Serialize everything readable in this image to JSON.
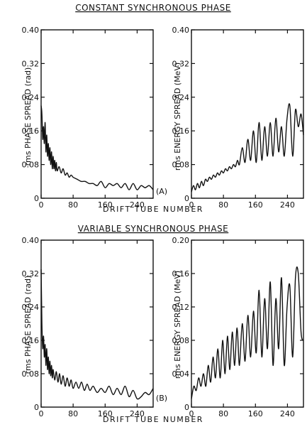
{
  "chart_data": [
    {
      "type": "line",
      "panel": "top-left",
      "title": "CONSTANT SYNCHRONOUS PHASE",
      "ylabel": "rms PHASE SPREAD (rad)",
      "xlabel": "DRIFT TUBE NUMBER",
      "xlim": [
        0,
        280
      ],
      "ylim": [
        0,
        0.4
      ],
      "xticks": [
        0,
        80,
        160,
        240
      ],
      "xtick_labels": [
        "0",
        "80",
        "160",
        "240"
      ],
      "yticks": [
        0,
        0.08,
        0.16,
        0.24,
        0.32,
        0.4
      ],
      "ytick_labels": [
        "0",
        "0.08",
        "0.16",
        "0.24",
        "0.32",
        "0.40"
      ],
      "series": [
        {
          "x": [
            0,
            2,
            4,
            6,
            8,
            10,
            12,
            14,
            16,
            18,
            20,
            22,
            24,
            26,
            28,
            30,
            32,
            34,
            36,
            38,
            40,
            45,
            50,
            55,
            60,
            65,
            70,
            75,
            80,
            90,
            100,
            110,
            120,
            130,
            140,
            150,
            160,
            170,
            180,
            190,
            200,
            210,
            220,
            230,
            240,
            250,
            260,
            270,
            280
          ],
          "y": [
            0.22,
            0.2,
            0.14,
            0.17,
            0.13,
            0.18,
            0.11,
            0.15,
            0.1,
            0.13,
            0.09,
            0.12,
            0.08,
            0.11,
            0.07,
            0.1,
            0.07,
            0.09,
            0.065,
            0.085,
            0.065,
            0.075,
            0.06,
            0.07,
            0.055,
            0.06,
            0.05,
            0.055,
            0.05,
            0.045,
            0.04,
            0.04,
            0.035,
            0.035,
            0.03,
            0.04,
            0.025,
            0.035,
            0.03,
            0.035,
            0.025,
            0.035,
            0.02,
            0.035,
            0.02,
            0.03,
            0.025,
            0.03,
            0.02
          ]
        }
      ]
    },
    {
      "type": "line",
      "panel": "top-right",
      "ylabel": "rms ENERGY SPREAD (MeV)",
      "annotation": "(A)",
      "xlim": [
        0,
        280
      ],
      "ylim": [
        0,
        0.4
      ],
      "xticks": [
        0,
        80,
        160,
        240
      ],
      "xtick_labels": [
        "0",
        "80",
        "160",
        "240"
      ],
      "yticks": [
        0,
        0.08,
        0.16,
        0.24,
        0.32,
        0.4
      ],
      "ytick_labels": [
        "0",
        "0.08",
        "0.16",
        "0.24",
        "0.32",
        "0.40"
      ],
      "series": [
        {
          "x": [
            0,
            5,
            10,
            15,
            20,
            25,
            30,
            35,
            40,
            45,
            50,
            55,
            60,
            65,
            70,
            75,
            80,
            85,
            90,
            95,
            100,
            105,
            110,
            115,
            120,
            127,
            134,
            141,
            148,
            155,
            162,
            169,
            176,
            183,
            190,
            197,
            204,
            211,
            218,
            225,
            232,
            239,
            246,
            253,
            260,
            267,
            274,
            280
          ],
          "y": [
            0.015,
            0.03,
            0.02,
            0.035,
            0.025,
            0.04,
            0.03,
            0.045,
            0.04,
            0.05,
            0.045,
            0.055,
            0.05,
            0.06,
            0.055,
            0.065,
            0.06,
            0.07,
            0.065,
            0.075,
            0.07,
            0.08,
            0.075,
            0.09,
            0.08,
            0.12,
            0.085,
            0.14,
            0.09,
            0.16,
            0.085,
            0.18,
            0.09,
            0.17,
            0.1,
            0.18,
            0.1,
            0.19,
            0.11,
            0.17,
            0.1,
            0.19,
            0.22,
            0.1,
            0.21,
            0.17,
            0.2,
            0.15
          ]
        }
      ]
    },
    {
      "type": "line",
      "panel": "bottom-left",
      "title": "VARIABLE SYNCHRONOUS PHASE",
      "ylabel": "rms PHASE SPREAD (rad)",
      "xlabel": "DRIFT TUBE NUMBER",
      "xlim": [
        0,
        280
      ],
      "ylim": [
        0,
        0.4
      ],
      "xticks": [
        0,
        80,
        160,
        240
      ],
      "xtick_labels": [
        "0",
        "80",
        "160",
        "240"
      ],
      "yticks": [
        0,
        0.08,
        0.16,
        0.24,
        0.32,
        0.4
      ],
      "ytick_labels": [
        "0",
        "0.08",
        "0.16",
        "0.24",
        "0.32",
        "0.40"
      ],
      "series": [
        {
          "x": [
            0,
            2,
            4,
            6,
            8,
            10,
            12,
            14,
            16,
            18,
            20,
            22,
            24,
            26,
            28,
            30,
            34,
            38,
            42,
            46,
            50,
            55,
            60,
            65,
            70,
            75,
            80,
            87,
            94,
            101,
            108,
            115,
            122,
            130,
            140,
            150,
            160,
            170,
            180,
            190,
            200,
            210,
            220,
            230,
            240,
            250,
            260,
            270,
            280
          ],
          "y": [
            0.33,
            0.2,
            0.14,
            0.17,
            0.12,
            0.15,
            0.1,
            0.14,
            0.09,
            0.12,
            0.08,
            0.11,
            0.075,
            0.1,
            0.07,
            0.09,
            0.065,
            0.085,
            0.06,
            0.08,
            0.055,
            0.075,
            0.05,
            0.07,
            0.05,
            0.065,
            0.045,
            0.06,
            0.045,
            0.06,
            0.04,
            0.055,
            0.04,
            0.05,
            0.035,
            0.045,
            0.035,
            0.05,
            0.03,
            0.045,
            0.03,
            0.05,
            0.025,
            0.04,
            0.02,
            0.025,
            0.035,
            0.03,
            0.045
          ]
        }
      ]
    },
    {
      "type": "line",
      "panel": "bottom-right",
      "ylabel": "rms ENERGY SPREAD (MeV)",
      "annotation": "(B)",
      "xlim": [
        0,
        280
      ],
      "ylim": [
        0,
        0.2
      ],
      "xticks": [
        0,
        80,
        160,
        240
      ],
      "xtick_labels": [
        "0",
        "80",
        "160",
        "240"
      ],
      "yticks": [
        0,
        0.04,
        0.08,
        0.12,
        0.16,
        0.2
      ],
      "ytick_labels": [
        "0",
        "0.04",
        "0.08",
        "0.12",
        "0.16",
        "0.20"
      ],
      "series": [
        {
          "x": [
            0,
            6,
            12,
            18,
            24,
            30,
            36,
            42,
            48,
            54,
            60,
            66,
            72,
            78,
            84,
            90,
            96,
            102,
            108,
            114,
            120,
            127,
            134,
            141,
            148,
            155,
            162,
            169,
            176,
            183,
            190,
            197,
            204,
            211,
            218,
            225,
            232,
            239,
            246,
            253,
            260,
            267,
            274,
            280
          ],
          "y": [
            0.01,
            0.025,
            0.02,
            0.035,
            0.025,
            0.04,
            0.025,
            0.05,
            0.03,
            0.06,
            0.035,
            0.07,
            0.035,
            0.08,
            0.04,
            0.085,
            0.045,
            0.09,
            0.05,
            0.095,
            0.05,
            0.1,
            0.055,
            0.11,
            0.06,
            0.115,
            0.065,
            0.14,
            0.06,
            0.13,
            0.07,
            0.15,
            0.05,
            0.13,
            0.07,
            0.155,
            0.05,
            0.12,
            0.145,
            0.06,
            0.155,
            0.16,
            0.09,
            0.08
          ]
        }
      ]
    }
  ]
}
